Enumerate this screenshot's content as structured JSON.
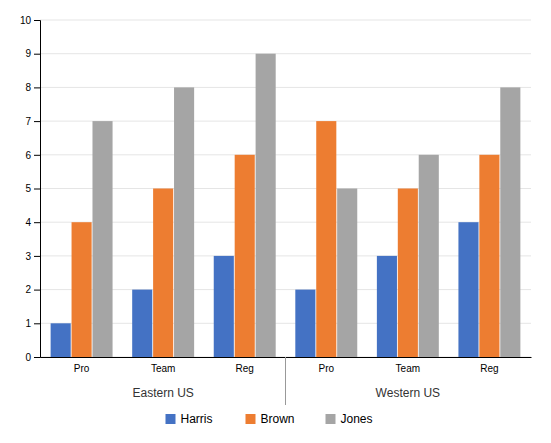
{
  "chart_data": {
    "type": "bar",
    "categories": [
      [
        "Eastern US",
        "Pro"
      ],
      [
        "Eastern US",
        "Team"
      ],
      [
        "Eastern US",
        "Reg"
      ],
      [
        "Western US",
        "Pro"
      ],
      [
        "Western US",
        "Team"
      ],
      [
        "Western US",
        "Reg"
      ]
    ],
    "series": [
      {
        "name": "Harris",
        "color": "#4472C4",
        "values": [
          1,
          2,
          3,
          2,
          3,
          4
        ]
      },
      {
        "name": "Brown",
        "color": "#ED7D31",
        "values": [
          4,
          5,
          6,
          7,
          5,
          6
        ]
      },
      {
        "name": "Jones",
        "color": "#A5A5A5",
        "values": [
          7,
          8,
          9,
          5,
          6,
          8
        ]
      }
    ],
    "ylim": [
      0,
      10
    ],
    "yticks": [
      0,
      1,
      2,
      3,
      4,
      5,
      6,
      7,
      8,
      9,
      10
    ],
    "grid": true,
    "legend": "bottom"
  }
}
